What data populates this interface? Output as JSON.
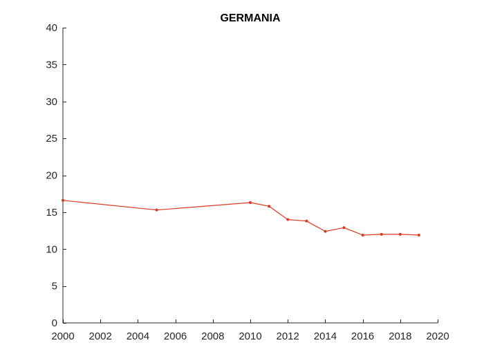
{
  "chart_data": {
    "type": "line",
    "title": "GERMANIA",
    "xlabel": "",
    "ylabel": "",
    "xlim": [
      2000,
      2020
    ],
    "ylim": [
      0,
      40
    ],
    "xticks": [
      2000,
      2002,
      2004,
      2006,
      2008,
      2010,
      2012,
      2014,
      2016,
      2018,
      2020
    ],
    "yticks": [
      0,
      5,
      10,
      15,
      20,
      25,
      30,
      35,
      40
    ],
    "grid": false,
    "legend": "none",
    "series": [
      {
        "color": "#d93a1f",
        "x": [
          2000,
          2005,
          2010,
          2011,
          2012,
          2013,
          2014,
          2015,
          2016,
          2017,
          2018,
          2019
        ],
        "y": [
          16.6,
          15.3,
          16.3,
          15.8,
          14.0,
          13.8,
          12.4,
          12.9,
          11.9,
          12.0,
          12.0,
          11.9
        ]
      }
    ]
  }
}
